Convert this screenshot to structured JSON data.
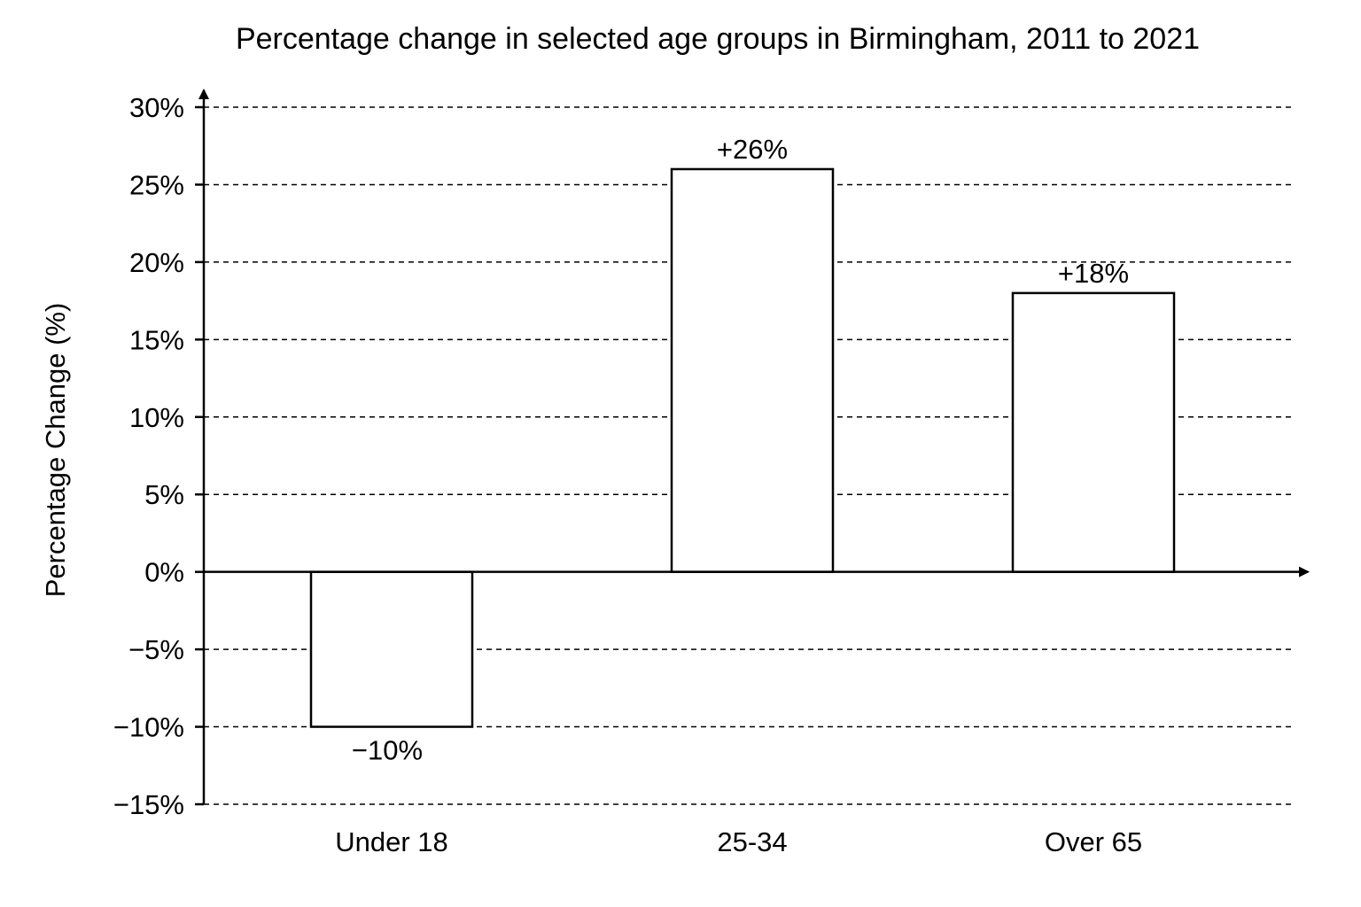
{
  "chart_data": {
    "type": "bar",
    "title": "Percentage change in selected age groups in Birmingham, 2011 to 2021",
    "xlabel": "",
    "ylabel": "Percentage Change (%)",
    "categories": [
      "Under 18",
      "25-34",
      "Over 65"
    ],
    "values": [
      -10,
      26,
      18
    ],
    "data_labels": [
      "−10%",
      "+26%",
      "+18%"
    ],
    "ylim": [
      -15,
      30
    ],
    "yticks": [
      30,
      25,
      20,
      15,
      10,
      5,
      0,
      -5,
      -10,
      -15
    ],
    "ytick_labels": [
      "30%",
      "25%",
      "20%",
      "15%",
      "10%",
      "5%",
      "0%",
      "−5%",
      "−10%",
      "−15%"
    ],
    "grid": true,
    "legend": "none",
    "bar_fill": "#ffffff",
    "bar_stroke": "#000000"
  }
}
